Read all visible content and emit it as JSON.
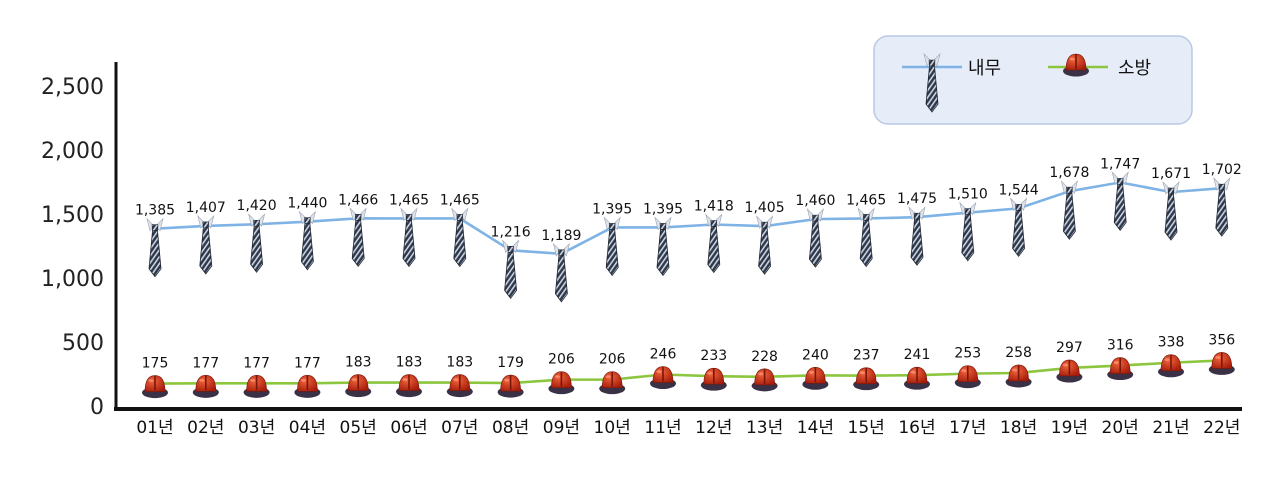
{
  "chart_data": {
    "type": "line",
    "categories": [
      "01년",
      "02년",
      "03년",
      "04년",
      "05년",
      "06년",
      "07년",
      "08년",
      "09년",
      "10년",
      "11년",
      "12년",
      "13년",
      "14년",
      "15년",
      "16년",
      "17년",
      "18년",
      "19년",
      "20년",
      "21년",
      "22년"
    ],
    "series": [
      {
        "name": "내무",
        "color": "#7fb2e5",
        "marker": "necktie-icon",
        "values": [
          1385,
          1407,
          1420,
          1440,
          1466,
          1465,
          1465,
          1216,
          1189,
          1395,
          1395,
          1418,
          1405,
          1460,
          1465,
          1475,
          1510,
          1544,
          1678,
          1747,
          1671,
          1702
        ],
        "labels": [
          "1,385",
          "1,407",
          "1,420",
          "1,440",
          "1,466",
          "1,465",
          "1,465",
          "1,216",
          "1,189",
          "1,395",
          "1,395",
          "1,418",
          "1,405",
          "1,460",
          "1,465",
          "1,475",
          "1,510",
          "1,544",
          "1,678",
          "1,747",
          "1,671",
          "1,702"
        ]
      },
      {
        "name": "소방",
        "color": "#8cc63f",
        "marker": "firefighter-helmet-icon",
        "values": [
          175,
          177,
          177,
          177,
          183,
          183,
          183,
          179,
          206,
          206,
          246,
          233,
          228,
          240,
          237,
          241,
          253,
          258,
          297,
          316,
          338,
          356
        ],
        "labels": [
          "175",
          "177",
          "177",
          "177",
          "183",
          "183",
          "183",
          "179",
          "206",
          "206",
          "246",
          "233",
          "228",
          "240",
          "237",
          "241",
          "253",
          "258",
          "297",
          "316",
          "338",
          "356"
        ]
      }
    ],
    "y_ticks": [
      "0",
      "500",
      "1,000",
      "1,500",
      "2,000",
      "2,500"
    ],
    "ylim": [
      0,
      2500
    ],
    "grid": false,
    "legend": {
      "position": "top-right",
      "background": "#e7edf8",
      "border": "#b9c8e6"
    }
  }
}
